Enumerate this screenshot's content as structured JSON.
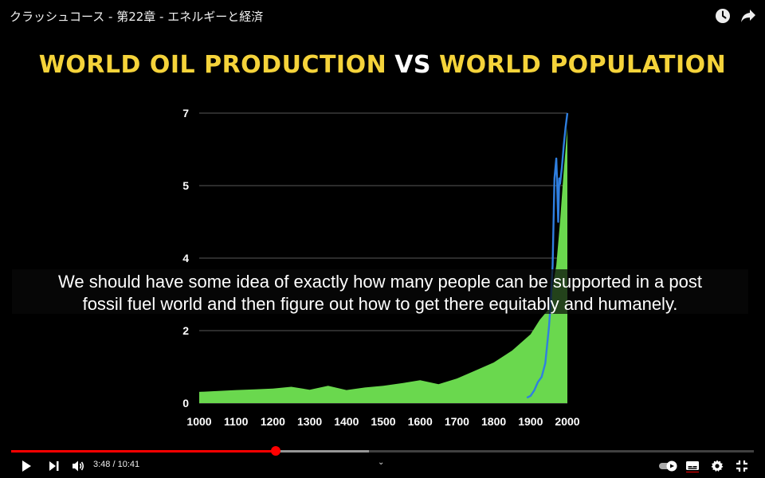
{
  "video": {
    "title": "クラッシュコース - 第22章 - エネルギーと経済",
    "watch_later_icon": "clock-icon",
    "share_icon": "share-arrow-icon"
  },
  "slide": {
    "title_part1": "WORLD OIL PRODUCTION",
    "title_vs": "VS",
    "title_part2": "WORLD POPULATION",
    "title_color": "#f5d33a"
  },
  "chart_data": {
    "type": "area",
    "x_ticks": [
      "1000",
      "1100",
      "1200",
      "1300",
      "1400",
      "1500",
      "1600",
      "1700",
      "1800",
      "1900",
      "2000"
    ],
    "y_ticks": [
      "0",
      "2",
      "4",
      "5",
      "7"
    ],
    "y_tick_values": [
      0,
      2,
      4,
      5,
      7
    ],
    "xlim": [
      1000,
      2000
    ],
    "ylim": [
      0,
      7
    ],
    "grid": true,
    "series": [
      {
        "type": "area",
        "color": "#6ad84e",
        "x": [
          1000,
          1100,
          1150,
          1200,
          1250,
          1300,
          1350,
          1400,
          1450,
          1500,
          1550,
          1600,
          1650,
          1700,
          1750,
          1800,
          1850,
          1900,
          1925,
          1950,
          1960,
          1970,
          1980,
          1990,
          2000
        ],
        "values": [
          0.31,
          0.36,
          0.38,
          0.4,
          0.45,
          0.37,
          0.48,
          0.36,
          0.43,
          0.48,
          0.55,
          0.63,
          0.52,
          0.68,
          0.9,
          1.12,
          1.45,
          1.9,
          2.3,
          2.6,
          3.2,
          3.8,
          4.5,
          5.4,
          6.6
        ]
      },
      {
        "type": "line",
        "color": "#2f7fe0",
        "x": [
          1890,
          1900,
          1910,
          1920,
          1930,
          1940,
          1950,
          1955,
          1960,
          1965,
          1970,
          1972,
          1975,
          1978,
          1980,
          1985,
          1990,
          1995,
          2000
        ],
        "values": [
          0.15,
          0.2,
          0.35,
          0.58,
          0.72,
          1.1,
          2.1,
          2.8,
          3.8,
          5.2,
          5.75,
          5.1,
          4.5,
          5.2,
          5.05,
          5.5,
          6.1,
          6.6,
          7.2
        ]
      }
    ]
  },
  "captions": {
    "line1": "We should have some idea of exactly how many people can be supported in a post",
    "line2": "fossil fuel world and then figure out how to get there equitably and humanely."
  },
  "player": {
    "current_time": "3:48",
    "duration": "10:41",
    "time_display": "3:48 / 10:41",
    "progress_fraction": 0.356,
    "buffered_fraction": 0.482,
    "accent_color": "#ff0000",
    "chevron": "⌄",
    "controls": [
      "play-icon",
      "next-icon",
      "volume-icon",
      "autoplay-toggle",
      "subtitles-icon",
      "settings-gear-icon",
      "exit-fullscreen-icon"
    ]
  }
}
